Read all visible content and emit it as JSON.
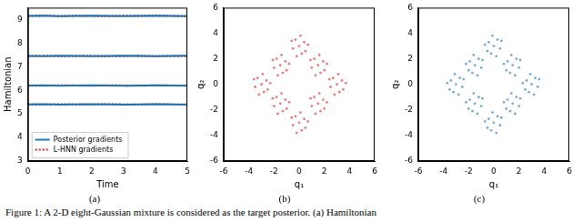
{
  "caption": "Figure 1: A 2-D eight-Gaussian mixture is considered as the target posterior. (a) Hamiltonian",
  "chart_data": [
    {
      "type": "line",
      "title": "(a)",
      "x_label": "Time",
      "y_label": "Hamiltonian",
      "x": [
        0,
        0.5,
        1,
        1.5,
        2,
        2.5,
        3,
        3.5,
        4,
        4.5,
        5
      ],
      "xlim": [
        0,
        5
      ],
      "xticks": [
        0,
        1,
        2,
        3,
        4,
        5
      ],
      "ylim": [
        3,
        9.5
      ],
      "yticks": [
        3,
        4,
        5,
        6,
        7,
        8,
        9
      ],
      "grid": false,
      "legend": "lower left",
      "series": [
        {
          "name": "Posterior gradients",
          "color": "#1f77b4",
          "line_style": "solid",
          "values": [
            9.15,
            9.16,
            9.14,
            9.15,
            9.16,
            9.15,
            9.14,
            9.15,
            9.16,
            9.15,
            9.14
          ]
        },
        {
          "name": "Posterior gradients",
          "color": "#1f77b4",
          "line_style": "solid",
          "values": [
            7.45,
            7.44,
            7.46,
            7.45,
            7.44,
            7.45,
            7.46,
            7.45,
            7.44,
            7.45,
            7.46
          ]
        },
        {
          "name": "Posterior gradients",
          "color": "#1f77b4",
          "line_style": "solid",
          "values": [
            6.2,
            6.21,
            6.19,
            6.2,
            6.21,
            6.2,
            6.19,
            6.2,
            6.21,
            6.2,
            6.19
          ]
        },
        {
          "name": "Posterior gradients",
          "color": "#1f77b4",
          "line_style": "solid",
          "values": [
            5.4,
            5.41,
            5.39,
            5.4,
            5.41,
            5.4,
            5.39,
            5.4,
            5.41,
            5.4,
            5.39
          ]
        },
        {
          "name": "L-HNN gradients",
          "color": "#d62728",
          "line_style": "dotted",
          "values": [
            9.15,
            9.17,
            9.14,
            9.16,
            9.15,
            9.14,
            9.16,
            9.15,
            9.17,
            9.15,
            9.14
          ]
        },
        {
          "name": "L-HNN gradients",
          "color": "#d62728",
          "line_style": "dotted",
          "values": [
            7.45,
            7.46,
            7.44,
            7.45,
            7.46,
            7.44,
            7.45,
            7.46,
            7.44,
            7.45,
            7.45
          ]
        },
        {
          "name": "L-HNN gradients",
          "color": "#d62728",
          "line_style": "dotted",
          "values": [
            6.2,
            6.19,
            6.21,
            6.2,
            6.19,
            6.21,
            6.2,
            6.19,
            6.21,
            6.2,
            6.2
          ]
        },
        {
          "name": "L-HNN gradients",
          "color": "#d62728",
          "line_style": "dotted",
          "values": [
            5.4,
            5.39,
            5.41,
            5.4,
            5.39,
            5.41,
            5.4,
            5.39,
            5.41,
            5.4,
            5.4
          ]
        }
      ]
    },
    {
      "type": "scatter",
      "title": "(b)",
      "x_label": "q₁",
      "y_label": "q₂",
      "color": "#d62728",
      "xlim": [
        -6,
        6
      ],
      "xticks": [
        -6,
        -4,
        -2,
        0,
        2,
        4,
        6
      ],
      "ylim": [
        -6,
        6
      ],
      "yticks": [
        -6,
        -4,
        -2,
        0,
        2,
        4,
        6
      ],
      "grid": false,
      "x": [
        0,
        0.4,
        -0.3,
        0.5,
        -0.5,
        0.2,
        -0.6,
        0.7,
        -0.2,
        0.1,
        1.5,
        1.9,
        1.2,
        2.0,
        1.0,
        1.7,
        0.9,
        2.2,
        1.3,
        1.6,
        3,
        3.4,
        2.7,
        3.5,
        2.5,
        3.2,
        2.4,
        3.7,
        2.8,
        3.1,
        1.5,
        1.9,
        1.2,
        2.0,
        1.0,
        1.7,
        0.9,
        2.2,
        1.3,
        1.6,
        0,
        0.4,
        -0.3,
        0.5,
        -0.5,
        0.2,
        -0.6,
        0.7,
        -0.2,
        0.1,
        -1.5,
        -1.1,
        -1.8,
        -1.0,
        -2.0,
        -1.3,
        -2.1,
        -0.8,
        -1.7,
        -1.4,
        -3,
        -2.6,
        -3.3,
        -2.5,
        -3.5,
        -2.8,
        -3.6,
        -2.3,
        -3.2,
        -2.9,
        -1.5,
        -1.1,
        -1.8,
        -1.0,
        -2.0,
        -1.3,
        -2.1,
        -0.8,
        -1.7,
        -1.4
      ],
      "values": [
        3,
        3.3,
        3.5,
        2.6,
        2.8,
        2.4,
        3.4,
        3.1,
        2.2,
        3.8,
        1.5,
        1.8,
        2.0,
        1.1,
        1.3,
        0.9,
        1.9,
        1.6,
        0.7,
        2.3,
        0,
        0.3,
        0.5,
        -0.4,
        -0.2,
        -0.6,
        0.4,
        0.1,
        -0.8,
        0.8,
        -1.5,
        -1.2,
        -1.0,
        -1.9,
        -1.7,
        -2.1,
        -1.1,
        -1.4,
        -2.3,
        -0.7,
        -3,
        -2.7,
        -2.5,
        -3.4,
        -3.2,
        -3.6,
        -2.6,
        -2.9,
        -3.8,
        -2.2,
        -1.5,
        -1.2,
        -1.0,
        -1.9,
        -1.7,
        -2.1,
        -1.1,
        -1.4,
        -2.3,
        -0.7,
        0,
        0.3,
        0.5,
        -0.4,
        -0.2,
        -0.6,
        0.4,
        0.1,
        -0.8,
        0.8,
        1.5,
        1.8,
        2.0,
        1.1,
        1.3,
        0.9,
        1.9,
        1.6,
        0.7,
        2.3
      ]
    },
    {
      "type": "scatter",
      "title": "(c)",
      "x_label": "q₁",
      "y_label": "q₂",
      "color": "#1f77b4",
      "xlim": [
        -6,
        6
      ],
      "xticks": [
        -6,
        -4,
        -2,
        0,
        2,
        4,
        6
      ],
      "ylim": [
        -6,
        6
      ],
      "yticks": [
        -6,
        -4,
        -2,
        0,
        2,
        4,
        6
      ],
      "grid": false,
      "x": [
        0,
        -0.4,
        0.3,
        -0.5,
        0.5,
        -0.2,
        0.6,
        -0.7,
        0.2,
        -0.1,
        -1.5,
        -1.9,
        -1.2,
        -2.0,
        -1.0,
        -1.7,
        -0.9,
        -2.2,
        -1.3,
        -1.6,
        -3,
        -3.4,
        -2.7,
        -3.5,
        -2.5,
        -3.2,
        -2.4,
        -3.7,
        -2.8,
        -3.1,
        -1.5,
        -1.9,
        -1.2,
        -2.0,
        -1.0,
        -1.7,
        -0.9,
        -2.2,
        -1.3,
        -1.6,
        0,
        -0.4,
        0.3,
        -0.5,
        0.5,
        -0.2,
        0.6,
        -0.7,
        0.2,
        -0.1,
        1.5,
        1.1,
        1.8,
        1.0,
        2.0,
        1.3,
        2.1,
        0.8,
        1.7,
        1.4,
        3,
        2.6,
        3.3,
        2.5,
        3.5,
        2.8,
        3.6,
        2.3,
        3.2,
        2.9,
        1.5,
        1.1,
        1.8,
        1.0,
        2.0,
        1.3,
        2.1,
        0.8,
        1.7,
        1.4
      ],
      "values": [
        3,
        3.3,
        3.5,
        2.6,
        2.8,
        2.4,
        3.4,
        3.1,
        2.2,
        3.8,
        1.5,
        1.8,
        2.0,
        1.1,
        1.3,
        0.9,
        1.9,
        1.6,
        0.7,
        2.3,
        0,
        0.3,
        0.5,
        -0.4,
        -0.2,
        -0.6,
        0.4,
        0.1,
        -0.8,
        0.8,
        -1.5,
        -1.2,
        -1.0,
        -1.9,
        -1.7,
        -2.1,
        -1.1,
        -1.4,
        -2.3,
        -0.7,
        -3,
        -2.7,
        -2.5,
        -3.4,
        -3.2,
        -3.6,
        -2.6,
        -2.9,
        -3.8,
        -2.2,
        -1.5,
        -1.2,
        -1.0,
        -1.9,
        -1.7,
        -2.1,
        -1.1,
        -1.4,
        -2.3,
        -0.7,
        0,
        0.3,
        0.5,
        -0.4,
        -0.2,
        -0.6,
        0.4,
        0.1,
        -0.8,
        0.8,
        1.5,
        1.8,
        2.0,
        1.1,
        1.3,
        0.9,
        1.9,
        1.6,
        0.7,
        2.3
      ]
    }
  ]
}
